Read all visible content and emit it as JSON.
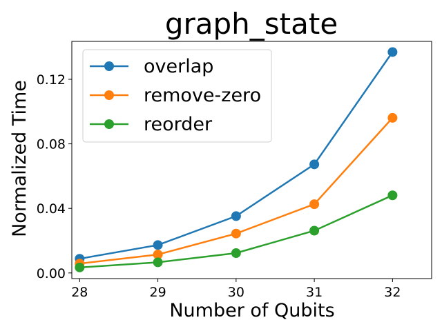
{
  "chart_data": {
    "type": "line",
    "title": "graph_state",
    "xlabel": "Number of Qubits",
    "ylabel": "Normalized Time",
    "x": [
      28,
      29,
      30,
      31,
      32
    ],
    "xticks": [
      "28",
      "29",
      "30",
      "31",
      "32"
    ],
    "yticks": [
      "0.00",
      "0.04",
      "0.08",
      "0.12"
    ],
    "yticks_values": [
      0.0,
      0.04,
      0.08,
      0.12
    ],
    "xlim": [
      27.9,
      32.5
    ],
    "ylim": [
      -0.0035,
      0.1435
    ],
    "grid": false,
    "legend_position": "top-left",
    "series": [
      {
        "name": "overlap",
        "color": "#1f77b4",
        "values": [
          0.0088,
          0.0173,
          0.0352,
          0.0673,
          0.1369
        ]
      },
      {
        "name": "remove-zero",
        "color": "#ff7f0e",
        "values": [
          0.0058,
          0.0114,
          0.0244,
          0.0426,
          0.0961
        ]
      },
      {
        "name": "reorder",
        "color": "#2ca02c",
        "values": [
          0.0034,
          0.0066,
          0.0123,
          0.0262,
          0.0481
        ]
      }
    ]
  }
}
